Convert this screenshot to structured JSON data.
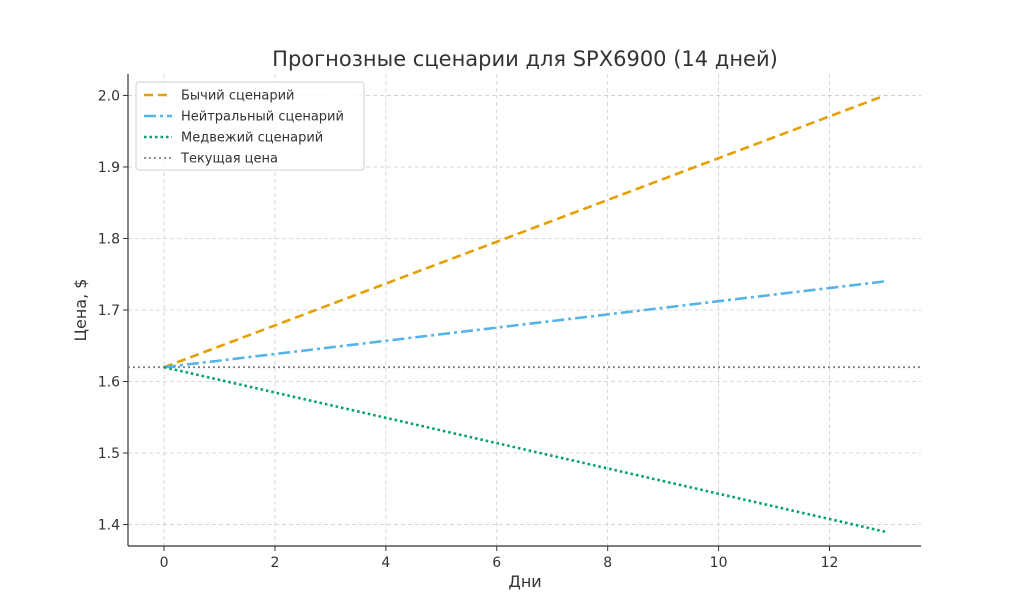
{
  "chart_data": {
    "type": "line",
    "title": "Прогнозные сценарии для SPX6900 (14 дней)",
    "xlabel": "Дни",
    "ylabel": "Цена, $",
    "xlim": [
      -0.65,
      13.65
    ],
    "ylim": [
      1.37,
      2.03
    ],
    "x_ticks": [
      0,
      2,
      4,
      6,
      8,
      10,
      12
    ],
    "y_ticks": [
      1.4,
      1.5,
      1.6,
      1.7,
      1.8,
      1.9,
      2.0
    ],
    "x_tick_labels": [
      "0",
      "2",
      "4",
      "6",
      "8",
      "10",
      "12"
    ],
    "y_tick_labels": [
      "1.4",
      "1.5",
      "1.6",
      "1.7",
      "1.8",
      "1.9",
      "2.0"
    ],
    "grid": true,
    "legend_position": "top-left",
    "series": [
      {
        "name": "Бычий сценарий",
        "color": "#E69F00",
        "style": "dashed",
        "x": [
          0,
          13
        ],
        "values": [
          1.62,
          2.0
        ]
      },
      {
        "name": "Нейтральный сценарий",
        "color": "#56B4E9",
        "style": "dashdot",
        "x": [
          0,
          13
        ],
        "values": [
          1.62,
          1.74
        ]
      },
      {
        "name": "Медвежий сценарий",
        "color": "#009E73",
        "style": "dotted",
        "x": [
          0,
          13
        ],
        "values": [
          1.62,
          1.39
        ]
      }
    ],
    "reference_line": {
      "name": "Текущая цена",
      "color": "#808080",
      "style": "dotted",
      "value": 1.62
    }
  }
}
